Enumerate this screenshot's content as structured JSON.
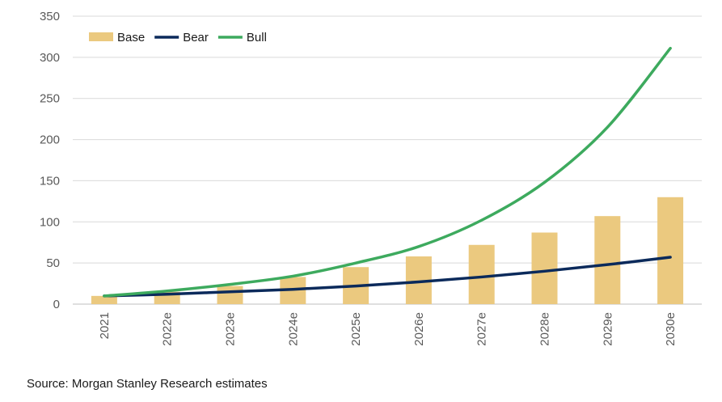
{
  "chart_data": {
    "type": "bar",
    "title": "",
    "xlabel": "",
    "ylabel": "",
    "ylim": [
      0,
      350
    ],
    "yticks": [
      "0",
      "50",
      "100",
      "150",
      "200",
      "250",
      "300",
      "350"
    ],
    "categories": [
      "2021",
      "2022e",
      "2023e",
      "2024e",
      "2025e",
      "2026e",
      "2027e",
      "2028e",
      "2029e",
      "2030e"
    ],
    "series": [
      {
        "name": "Base",
        "kind": "bar",
        "color": "#ebc97f",
        "values": [
          10,
          15,
          22,
          33,
          45,
          58,
          72,
          87,
          107,
          130
        ]
      },
      {
        "name": "Bear",
        "kind": "line",
        "color": "#0b2a5b",
        "values": [
          10,
          12,
          15,
          18,
          22,
          27,
          33,
          40,
          48,
          57
        ]
      },
      {
        "name": "Bull",
        "kind": "line",
        "color": "#3daa5e",
        "values": [
          10,
          16,
          24,
          34,
          50,
          70,
          102,
          148,
          215,
          311
        ]
      }
    ],
    "legend_position": "top-left",
    "grid": true
  },
  "source": "Source: Morgan Stanley Research estimates"
}
